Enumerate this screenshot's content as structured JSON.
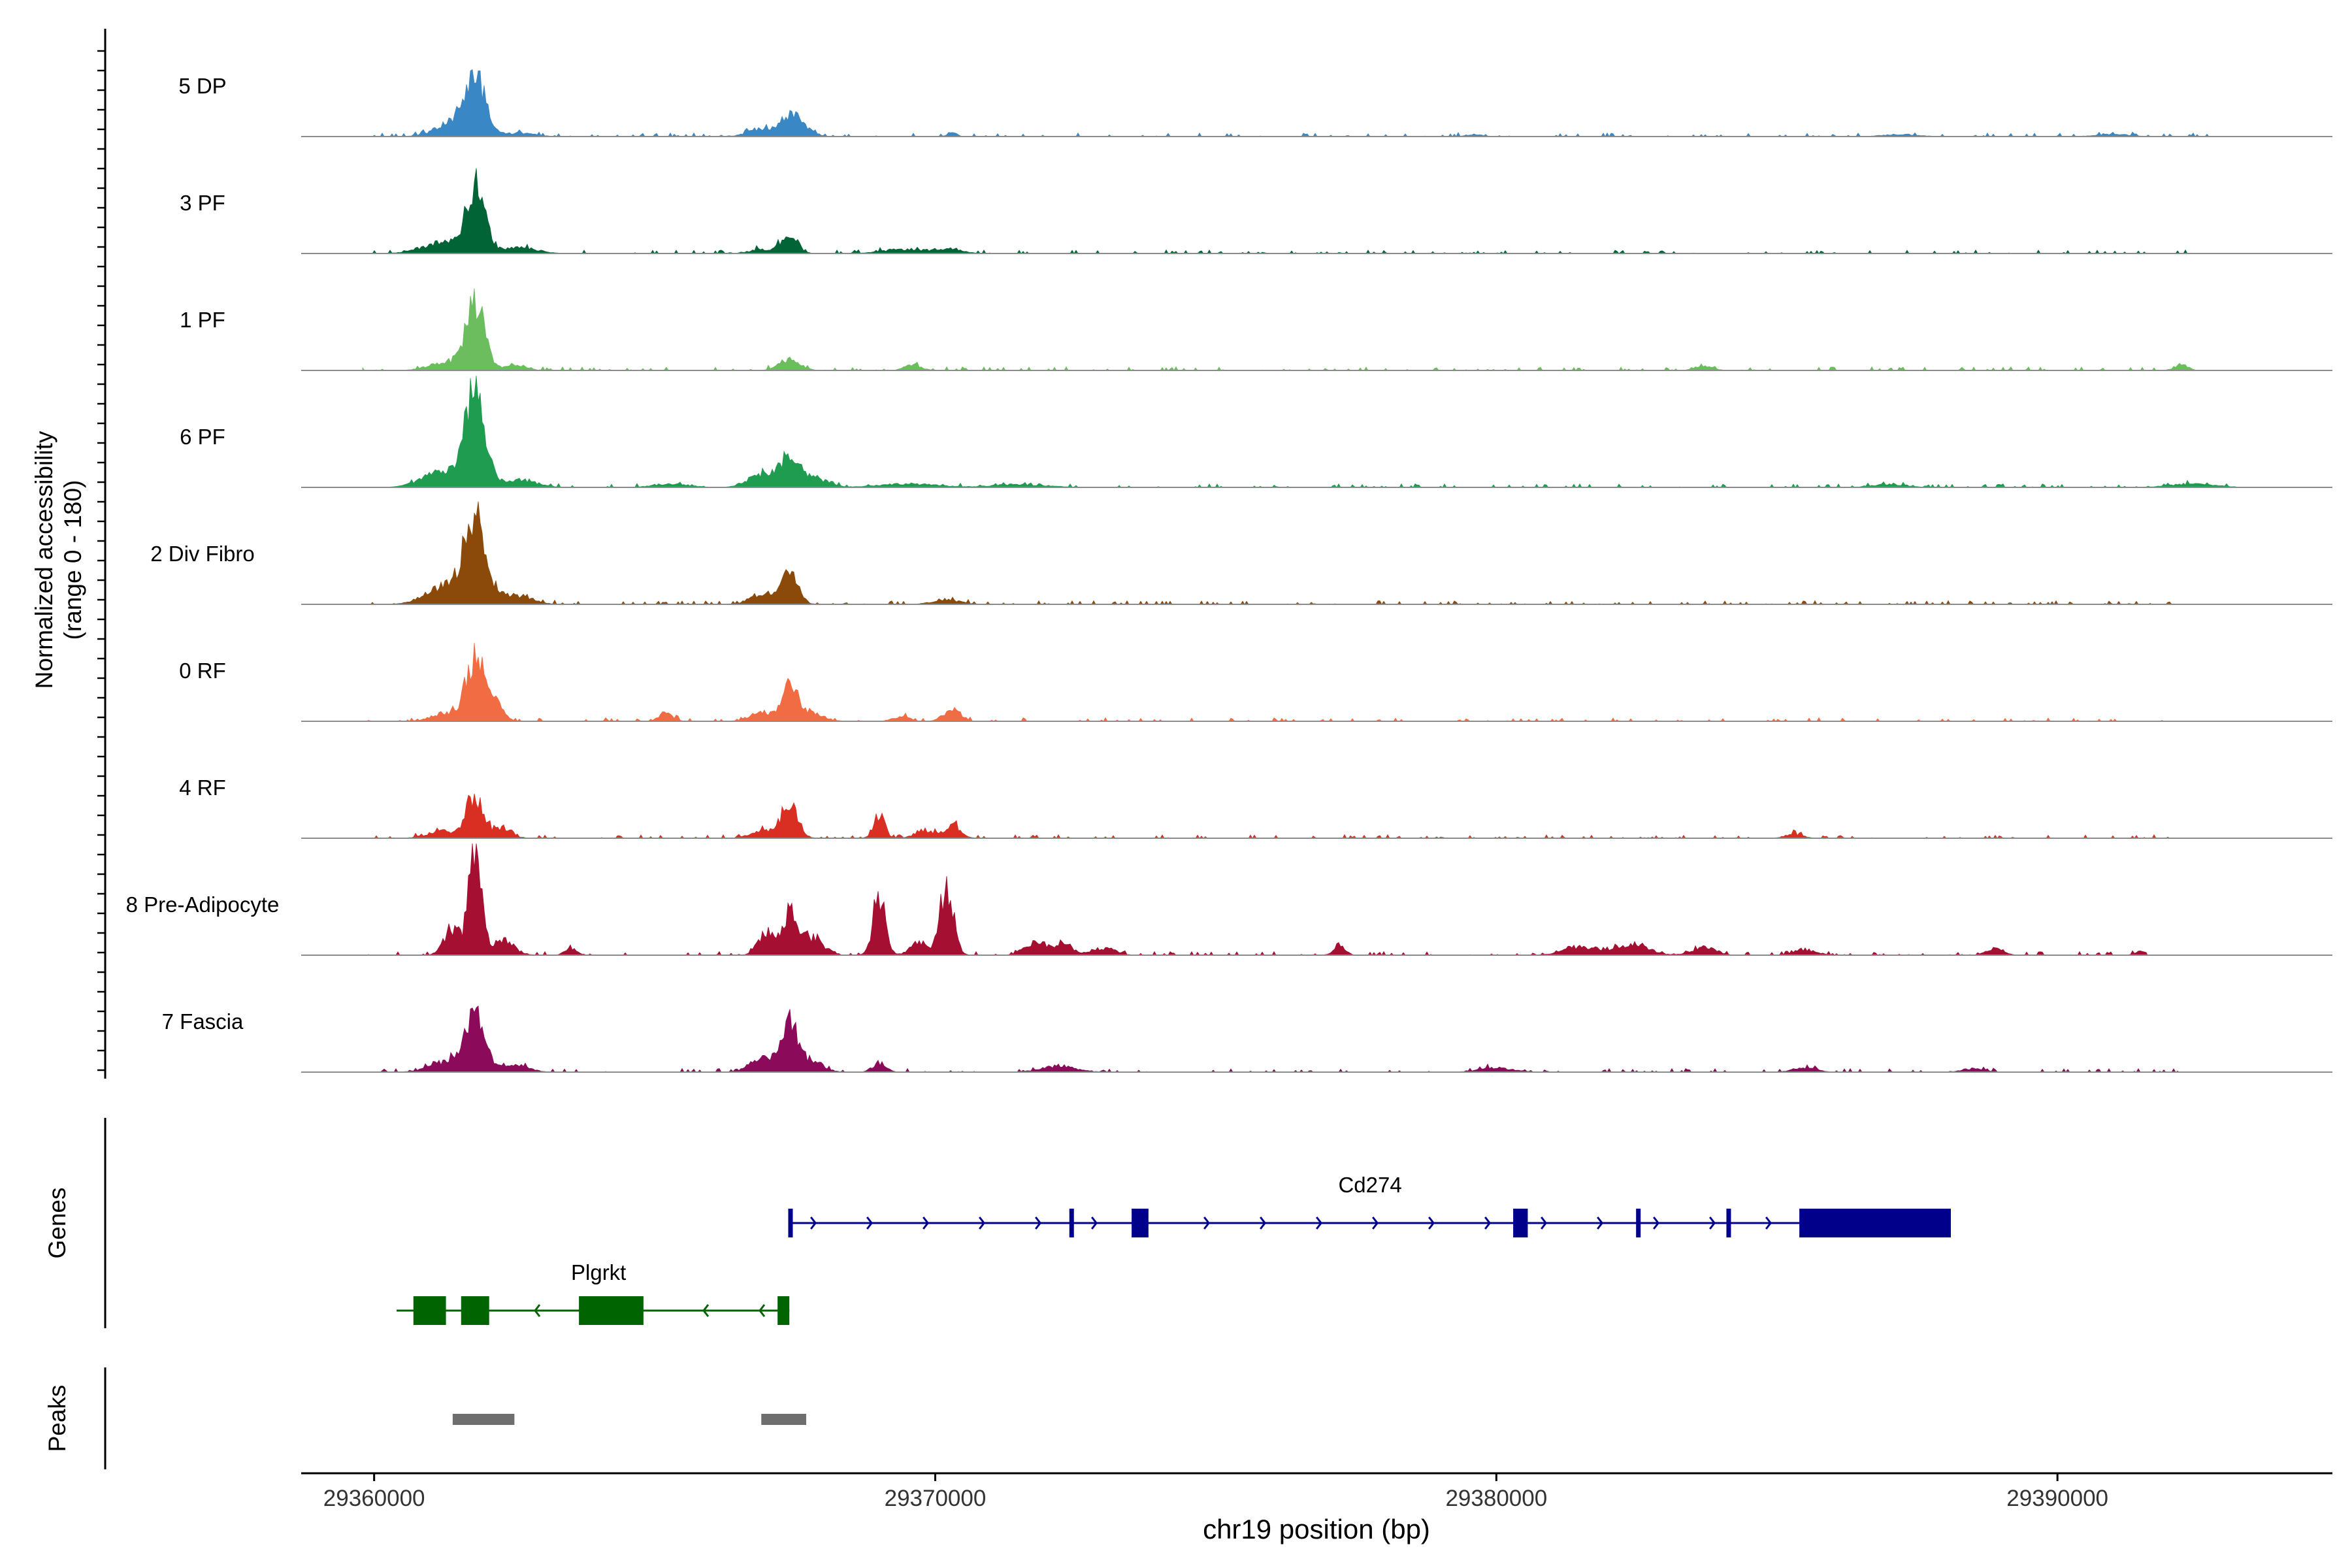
{
  "chart_data": {
    "type": "area",
    "region": "chr19",
    "ylabel_line1": "Normalized accessibility",
    "ylabel_line2": "(range 0 - 180)",
    "xlabel": "chr19 position (bp)",
    "xlim": [
      29358700,
      29394900
    ],
    "xticks": [
      {
        "value": 29360000,
        "label": "29360000"
      },
      {
        "value": 29370000,
        "label": "29370000"
      },
      {
        "value": 29380000,
        "label": "29380000"
      },
      {
        "value": 29390000,
        "label": "29390000"
      }
    ],
    "ylim": [
      0,
      180
    ],
    "series": [
      {
        "name": "5 DP",
        "color": "#3a87c6",
        "end": 29392700,
        "peaks": [
          [
            29361800,
            0.74,
            190
          ],
          [
            29361400,
            0.18,
            300
          ],
          [
            29362600,
            0.05,
            250
          ],
          [
            29366900,
            0.12,
            220
          ],
          [
            29367400,
            0.28,
            150
          ],
          [
            29367700,
            0.1,
            150
          ],
          [
            29370300,
            0.06,
            80
          ],
          [
            29379600,
            0.03,
            150
          ],
          [
            29387200,
            0.03,
            300
          ],
          [
            29391000,
            0.03,
            300
          ]
        ]
      },
      {
        "name": "3 PF",
        "color": "#006437",
        "end": 29392700,
        "peaks": [
          [
            29361800,
            0.92,
            170
          ],
          [
            29361200,
            0.15,
            350
          ],
          [
            29362600,
            0.08,
            300
          ],
          [
            29367400,
            0.27,
            140
          ],
          [
            29366900,
            0.06,
            200
          ],
          [
            29369500,
            0.06,
            400
          ],
          [
            29370300,
            0.06,
            200
          ]
        ]
      },
      {
        "name": "1 PF",
        "color": "#6bbd5e",
        "end": 29392700,
        "peaks": [
          [
            29361800,
            0.95,
            160
          ],
          [
            29361300,
            0.12,
            300
          ],
          [
            29362500,
            0.07,
            200
          ],
          [
            29367400,
            0.16,
            180
          ],
          [
            29369600,
            0.07,
            150
          ],
          [
            29383700,
            0.07,
            150
          ],
          [
            29392200,
            0.08,
            120
          ]
        ]
      },
      {
        "name": "6 PF",
        "color": "#1f9c4f",
        "end": 29393200,
        "peaks": [
          [
            29361800,
            1.25,
            180
          ],
          [
            29361200,
            0.2,
            350
          ],
          [
            29362600,
            0.1,
            300
          ],
          [
            29367400,
            0.38,
            160
          ],
          [
            29366900,
            0.18,
            250
          ],
          [
            29367800,
            0.14,
            250
          ],
          [
            29365300,
            0.05,
            300
          ],
          [
            29369500,
            0.05,
            500
          ],
          [
            29371500,
            0.04,
            500
          ],
          [
            29387000,
            0.04,
            300
          ],
          [
            29392400,
            0.05,
            400
          ]
        ]
      },
      {
        "name": "2 Div Fibro",
        "color": "#8b4a0a",
        "end": 29392200,
        "peaks": [
          [
            29361800,
            1.18,
            190
          ],
          [
            29361300,
            0.25,
            350
          ],
          [
            29362500,
            0.12,
            300
          ],
          [
            29367400,
            0.42,
            150
          ],
          [
            29366900,
            0.15,
            200
          ],
          [
            29370200,
            0.06,
            250
          ]
        ]
      },
      {
        "name": "0 RF",
        "color": "#f26c43",
        "end": 29392200,
        "peaks": [
          [
            29361800,
            0.88,
            160
          ],
          [
            29362200,
            0.22,
            120
          ],
          [
            29361300,
            0.12,
            250
          ],
          [
            29365200,
            0.12,
            120
          ],
          [
            29367400,
            0.45,
            150
          ],
          [
            29366900,
            0.12,
            200
          ],
          [
            29367800,
            0.12,
            200
          ],
          [
            29370300,
            0.17,
            150
          ],
          [
            29369400,
            0.06,
            150
          ]
        ]
      },
      {
        "name": "4 RF",
        "color": "#d92e22",
        "end": 29392200,
        "peaks": [
          [
            29361800,
            0.62,
            150
          ],
          [
            29362300,
            0.15,
            150
          ],
          [
            29361200,
            0.1,
            250
          ],
          [
            29367400,
            0.45,
            150
          ],
          [
            29366900,
            0.1,
            200
          ],
          [
            29369000,
            0.32,
            100
          ],
          [
            29370300,
            0.18,
            150
          ],
          [
            29369800,
            0.12,
            150
          ],
          [
            29385300,
            0.06,
            150
          ]
        ]
      },
      {
        "name": "8 Pre-Adipocyte",
        "color": "#a50f31",
        "end": 29391600,
        "peaks": [
          [
            29361800,
            1.45,
            110
          ],
          [
            29361400,
            0.35,
            150
          ],
          [
            29362300,
            0.2,
            200
          ],
          [
            29363500,
            0.1,
            100
          ],
          [
            29367400,
            0.6,
            130
          ],
          [
            29367000,
            0.3,
            150
          ],
          [
            29367800,
            0.25,
            200
          ],
          [
            29369000,
            0.78,
            110
          ],
          [
            29370200,
            0.95,
            120
          ],
          [
            29369700,
            0.18,
            150
          ],
          [
            29371800,
            0.18,
            200
          ],
          [
            29372300,
            0.15,
            150
          ],
          [
            29373000,
            0.1,
            200
          ],
          [
            29377200,
            0.15,
            100
          ],
          [
            29381500,
            0.12,
            300
          ],
          [
            29382400,
            0.15,
            300
          ],
          [
            29383700,
            0.12,
            200
          ],
          [
            29385500,
            0.08,
            200
          ],
          [
            29388900,
            0.1,
            150
          ],
          [
            29391500,
            0.06,
            100
          ]
        ]
      },
      {
        "name": "7 Fascia",
        "color": "#8b0a5a",
        "end": 29392200,
        "peaks": [
          [
            29361800,
            0.75,
            170
          ],
          [
            29361300,
            0.15,
            300
          ],
          [
            29362500,
            0.1,
            250
          ],
          [
            29367400,
            0.66,
            150
          ],
          [
            29366900,
            0.2,
            200
          ],
          [
            29367800,
            0.15,
            200
          ],
          [
            29369000,
            0.12,
            120
          ],
          [
            29372200,
            0.08,
            300
          ],
          [
            29380000,
            0.06,
            300
          ],
          [
            29385500,
            0.06,
            200
          ],
          [
            29388500,
            0.05,
            200
          ]
        ]
      }
    ],
    "genes": [
      {
        "name": "Cd274",
        "strand": "+",
        "color": "#00008b",
        "start": 29367400,
        "end": 29388100,
        "exons": [
          [
            29367380,
            29367440
          ],
          [
            29372390,
            29372440
          ],
          [
            29373500,
            29373800
          ],
          [
            29380300,
            29380560
          ],
          [
            29382490,
            29382560
          ],
          [
            29384100,
            29384140
          ],
          [
            29385400,
            29388100
          ]
        ]
      },
      {
        "name": "Plgrkt",
        "strand": "-",
        "color": "#006400",
        "start": 29360400,
        "end": 29367400,
        "exons": [
          [
            29360700,
            29361280
          ],
          [
            29361550,
            29362050
          ],
          [
            29363650,
            29364800
          ],
          [
            29367190,
            29367400
          ]
        ]
      }
    ],
    "peaks_track": [
      [
        29361400,
        29362500
      ],
      [
        29366900,
        29367700
      ]
    ],
    "panel_titles": {
      "genes": "Genes",
      "peaks": "Peaks"
    }
  }
}
